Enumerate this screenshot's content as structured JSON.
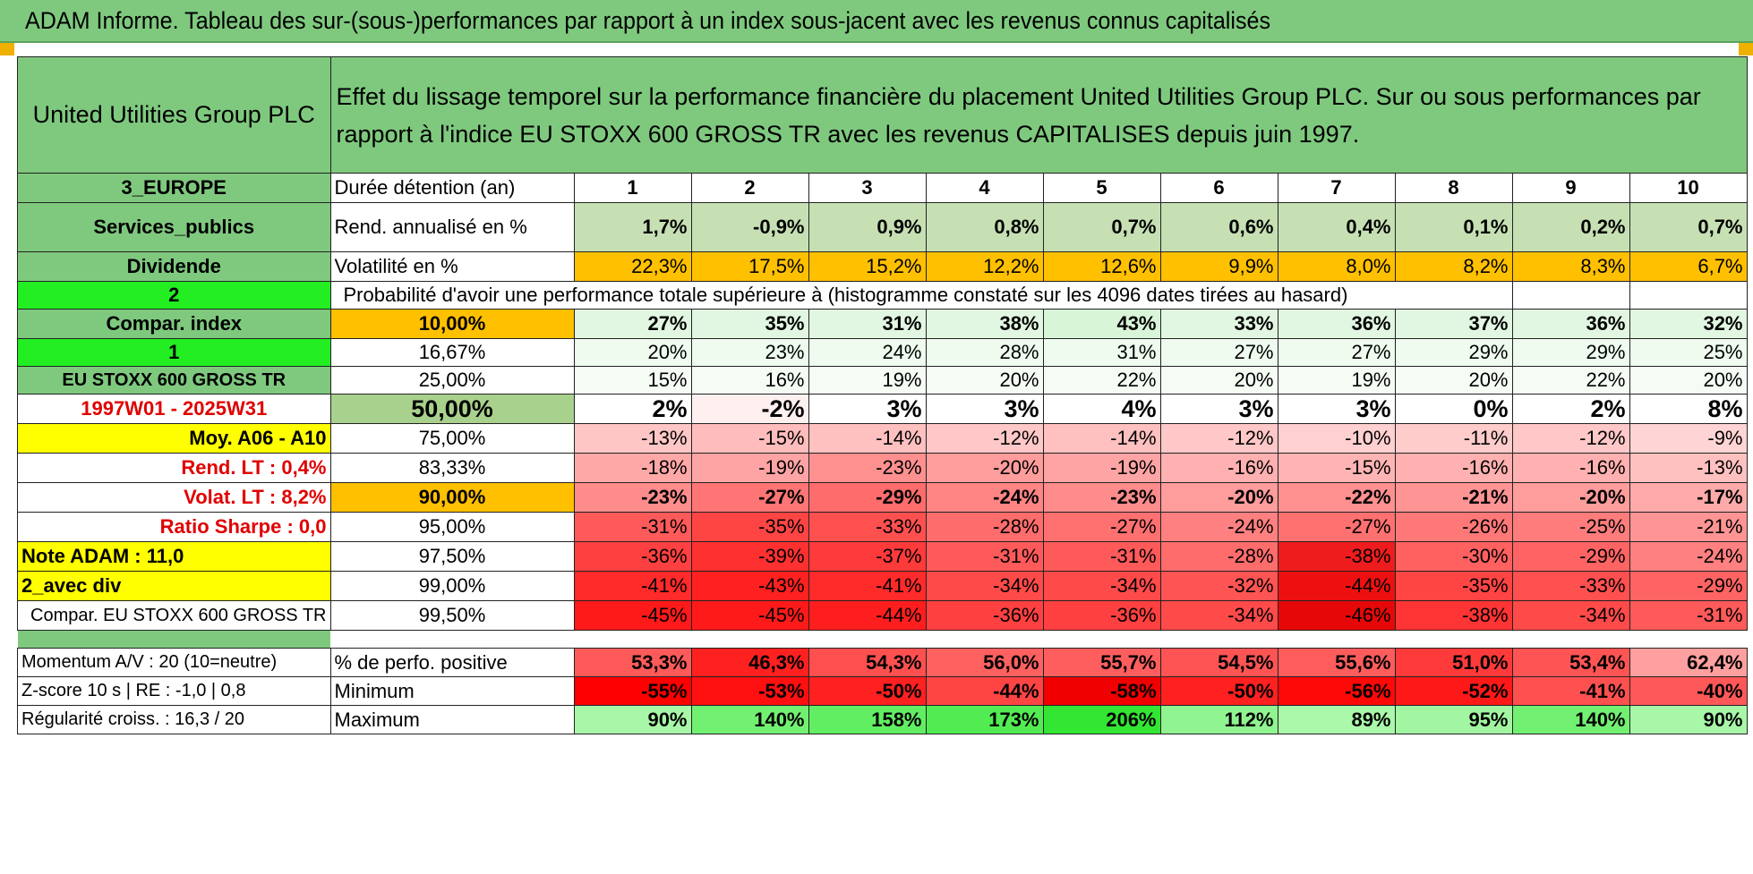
{
  "title": "ADAM Informe. Tableau des sur-(sous-)performances par rapport à un index sous-jacent avec les revenus connus capitalisés",
  "company": "United Utilities Group PLC",
  "description": "Effet du lissage temporel sur la performance financière du placement United Utilities Group PLC. Sur ou sous performances par rapport à l'indice EU STOXX 600 GROSS TR avec les revenus CAPITALISES depuis juin 1997.",
  "side": {
    "region": "3_EUROPE",
    "sector": "Services_publics",
    "dividend": "Dividende",
    "n1": "2",
    "compar_index": "Compar. index",
    "n2": "1",
    "index_name": "EU STOXX 600 GROSS TR",
    "period": "1997W01 - 2025W31",
    "moy": "Moy. A06 - A10",
    "rend_lt": "Rend. LT :    0,4%",
    "volat_lt": "Volat. LT :    8,2%",
    "sharpe": "Ratio Sharpe :    0,0",
    "note": "Note ADAM : 11,0",
    "avec_div": "2_avec div",
    "compar_full": "Compar. EU STOXX 600 GROSS TR",
    "momentum": "Momentum A/V : 20 (10=neutre)",
    "zscore": "Z-score 10 s | RE : -1,0 | 0,8",
    "regularite": "Régularité croiss. : 16,3 / 20"
  },
  "labels": {
    "duree": "Durée détention (an)",
    "rend": "Rend. annualisé en %",
    "volat": "Volatilité en %",
    "proba": "Probabilité d'avoir une performance totale supérieure à (histogramme constaté sur les 4096 dates tirées au hasard)",
    "pos": "% de perfo. positive",
    "min": "Minimum",
    "max": "Maximum"
  },
  "years": [
    "1",
    "2",
    "3",
    "4",
    "5",
    "6",
    "7",
    "8",
    "9",
    "10"
  ],
  "rend": [
    "1,7%",
    "-0,9%",
    "0,9%",
    "0,8%",
    "0,7%",
    "0,6%",
    "0,4%",
    "0,1%",
    "0,2%",
    "0,7%"
  ],
  "volat": [
    "22,3%",
    "17,5%",
    "15,2%",
    "12,2%",
    "12,6%",
    "9,9%",
    "8,0%",
    "8,2%",
    "8,3%",
    "6,7%"
  ],
  "rows": [
    {
      "p": "10,00%",
      "v": [
        "27%",
        "35%",
        "31%",
        "38%",
        "43%",
        "33%",
        "36%",
        "37%",
        "36%",
        "32%"
      ],
      "bold": true,
      "pbg": "#ffc000",
      "bg": [
        "#e2f7e2",
        "#e2f7e2",
        "#e2f7e2",
        "#e2f7e2",
        "#d8f5d8",
        "#e2f7e2",
        "#e2f7e2",
        "#e2f7e2",
        "#e2f7e2",
        "#e2f7e2"
      ]
    },
    {
      "p": "16,67%",
      "v": [
        "20%",
        "23%",
        "24%",
        "28%",
        "31%",
        "27%",
        "27%",
        "29%",
        "29%",
        "25%"
      ],
      "bold": false,
      "pbg": "#ffffff",
      "bg": [
        "#eefbee",
        "#eefbee",
        "#eefbee",
        "#eefbee",
        "#eefbee",
        "#eefbee",
        "#eefbee",
        "#eefbee",
        "#eefbee",
        "#eefbee"
      ]
    },
    {
      "p": "25,00%",
      "v": [
        "15%",
        "16%",
        "19%",
        "20%",
        "22%",
        "20%",
        "19%",
        "20%",
        "22%",
        "20%"
      ],
      "bold": false,
      "pbg": "#ffffff",
      "bg": [
        "#f4fcf4",
        "#f4fcf4",
        "#f4fcf4",
        "#f4fcf4",
        "#f4fcf4",
        "#f4fcf4",
        "#f4fcf4",
        "#f4fcf4",
        "#f4fcf4",
        "#f4fcf4"
      ]
    },
    {
      "p": "50,00%",
      "v": [
        "2%",
        "-2%",
        "3%",
        "3%",
        "4%",
        "3%",
        "3%",
        "0%",
        "2%",
        "8%"
      ],
      "bold": true,
      "big": true,
      "pbg": "#a9d18e",
      "bg": [
        "#ffffff",
        "#fff0f0",
        "#ffffff",
        "#ffffff",
        "#ffffff",
        "#ffffff",
        "#ffffff",
        "#ffffff",
        "#ffffff",
        "#ffffff"
      ]
    },
    {
      "p": "75,00%",
      "v": [
        "-13%",
        "-15%",
        "-14%",
        "-12%",
        "-14%",
        "-12%",
        "-10%",
        "-11%",
        "-12%",
        "-9%"
      ],
      "bold": false,
      "pbg": "#ffffff",
      "bg": [
        "#ffc6c6",
        "#ffbcbc",
        "#ffc0c0",
        "#ffc8c8",
        "#ffc0c0",
        "#ffc8c8",
        "#ffd0d0",
        "#ffcccc",
        "#ffc8c8",
        "#ffd4d4"
      ]
    },
    {
      "p": "83,33%",
      "v": [
        "-18%",
        "-19%",
        "-23%",
        "-20%",
        "-19%",
        "-16%",
        "-15%",
        "-16%",
        "-16%",
        "-13%"
      ],
      "bold": false,
      "pbg": "#ffffff",
      "bg": [
        "#ffa8a8",
        "#ffa4a4",
        "#ff9090",
        "#ff9c9c",
        "#ffa4a4",
        "#ffb0b0",
        "#ffb4b4",
        "#ffb0b0",
        "#ffb0b0",
        "#ffc0c0"
      ]
    },
    {
      "p": "90,00%",
      "v": [
        "-23%",
        "-27%",
        "-29%",
        "-24%",
        "-23%",
        "-20%",
        "-22%",
        "-21%",
        "-20%",
        "-17%"
      ],
      "bold": true,
      "pbg": "#ffc000",
      "bg": [
        "#ff8c8c",
        "#ff7474",
        "#ff6c6c",
        "#ff8484",
        "#ff8c8c",
        "#ff9c9c",
        "#ff9090",
        "#ff9494",
        "#ff9c9c",
        "#ffaaaa"
      ]
    },
    {
      "p": "95,00%",
      "v": [
        "-31%",
        "-35%",
        "-33%",
        "-28%",
        "-27%",
        "-24%",
        "-27%",
        "-26%",
        "-25%",
        "-21%"
      ],
      "bold": false,
      "pbg": "#ffffff",
      "bg": [
        "#ff5a5a",
        "#ff4444",
        "#ff5050",
        "#ff6c6c",
        "#ff7070",
        "#ff8080",
        "#ff7070",
        "#ff7878",
        "#ff7c7c",
        "#ff9494"
      ]
    },
    {
      "p": "97,50%",
      "v": [
        "-36%",
        "-39%",
        "-37%",
        "-31%",
        "-31%",
        "-28%",
        "-38%",
        "-30%",
        "-29%",
        "-24%"
      ],
      "bold": false,
      "pbg": "#ffffff",
      "bg": [
        "#ff4040",
        "#ff3030",
        "#ff3a3a",
        "#ff5a5a",
        "#ff5a5a",
        "#ff6c6c",
        "#ee1c1c",
        "#ff6060",
        "#ff6464",
        "#ff8080"
      ]
    },
    {
      "p": "99,00%",
      "v": [
        "-41%",
        "-43%",
        "-41%",
        "-34%",
        "-34%",
        "-32%",
        "-44%",
        "-35%",
        "-33%",
        "-29%"
      ],
      "bold": false,
      "pbg": "#ffffff",
      "bg": [
        "#ff2a2a",
        "#ff2020",
        "#ff2a2a",
        "#ff4a4a",
        "#ff4a4a",
        "#ff5454",
        "#ee1010",
        "#ff4444",
        "#ff5050",
        "#ff6464"
      ]
    },
    {
      "p": "99,50%",
      "v": [
        "-45%",
        "-45%",
        "-44%",
        "-36%",
        "-36%",
        "-34%",
        "-46%",
        "-38%",
        "-34%",
        "-31%"
      ],
      "bold": false,
      "pbg": "#ffffff",
      "bg": [
        "#ff1a1a",
        "#ff1a1a",
        "#ff1e1e",
        "#ff4040",
        "#ff4040",
        "#ff4a4a",
        "#e60808",
        "#ff3434",
        "#ff4a4a",
        "#ff5a5a"
      ]
    }
  ],
  "pos": [
    "53,3%",
    "46,3%",
    "54,3%",
    "56,0%",
    "55,7%",
    "54,5%",
    "55,6%",
    "51,0%",
    "53,4%",
    "62,4%"
  ],
  "pos_bg": [
    "#ff5a5a",
    "#ff2020",
    "#ff5050",
    "#ff6060",
    "#ff5e5e",
    "#ff5454",
    "#ff5c5c",
    "#ff3a3a",
    "#ff5454",
    "#ffa0a0"
  ],
  "min": [
    "-55%",
    "-53%",
    "-50%",
    "-44%",
    "-58%",
    "-50%",
    "-56%",
    "-52%",
    "-41%",
    "-40%"
  ],
  "min_bg": [
    "#ff0000",
    "#ff1010",
    "#ff2020",
    "#ff4444",
    "#f00000",
    "#ff2020",
    "#ff0808",
    "#ff1818",
    "#ff5050",
    "#ff5858"
  ],
  "max": [
    "90%",
    "140%",
    "158%",
    "173%",
    "206%",
    "112%",
    "89%",
    "95%",
    "140%",
    "90%"
  ],
  "max_bg": [
    "#a8f7a8",
    "#72f072",
    "#62ee62",
    "#52ec52",
    "#33e633",
    "#90f490",
    "#aaf8aa",
    "#a2f6a2",
    "#72f072",
    "#a8f7a8"
  ]
}
